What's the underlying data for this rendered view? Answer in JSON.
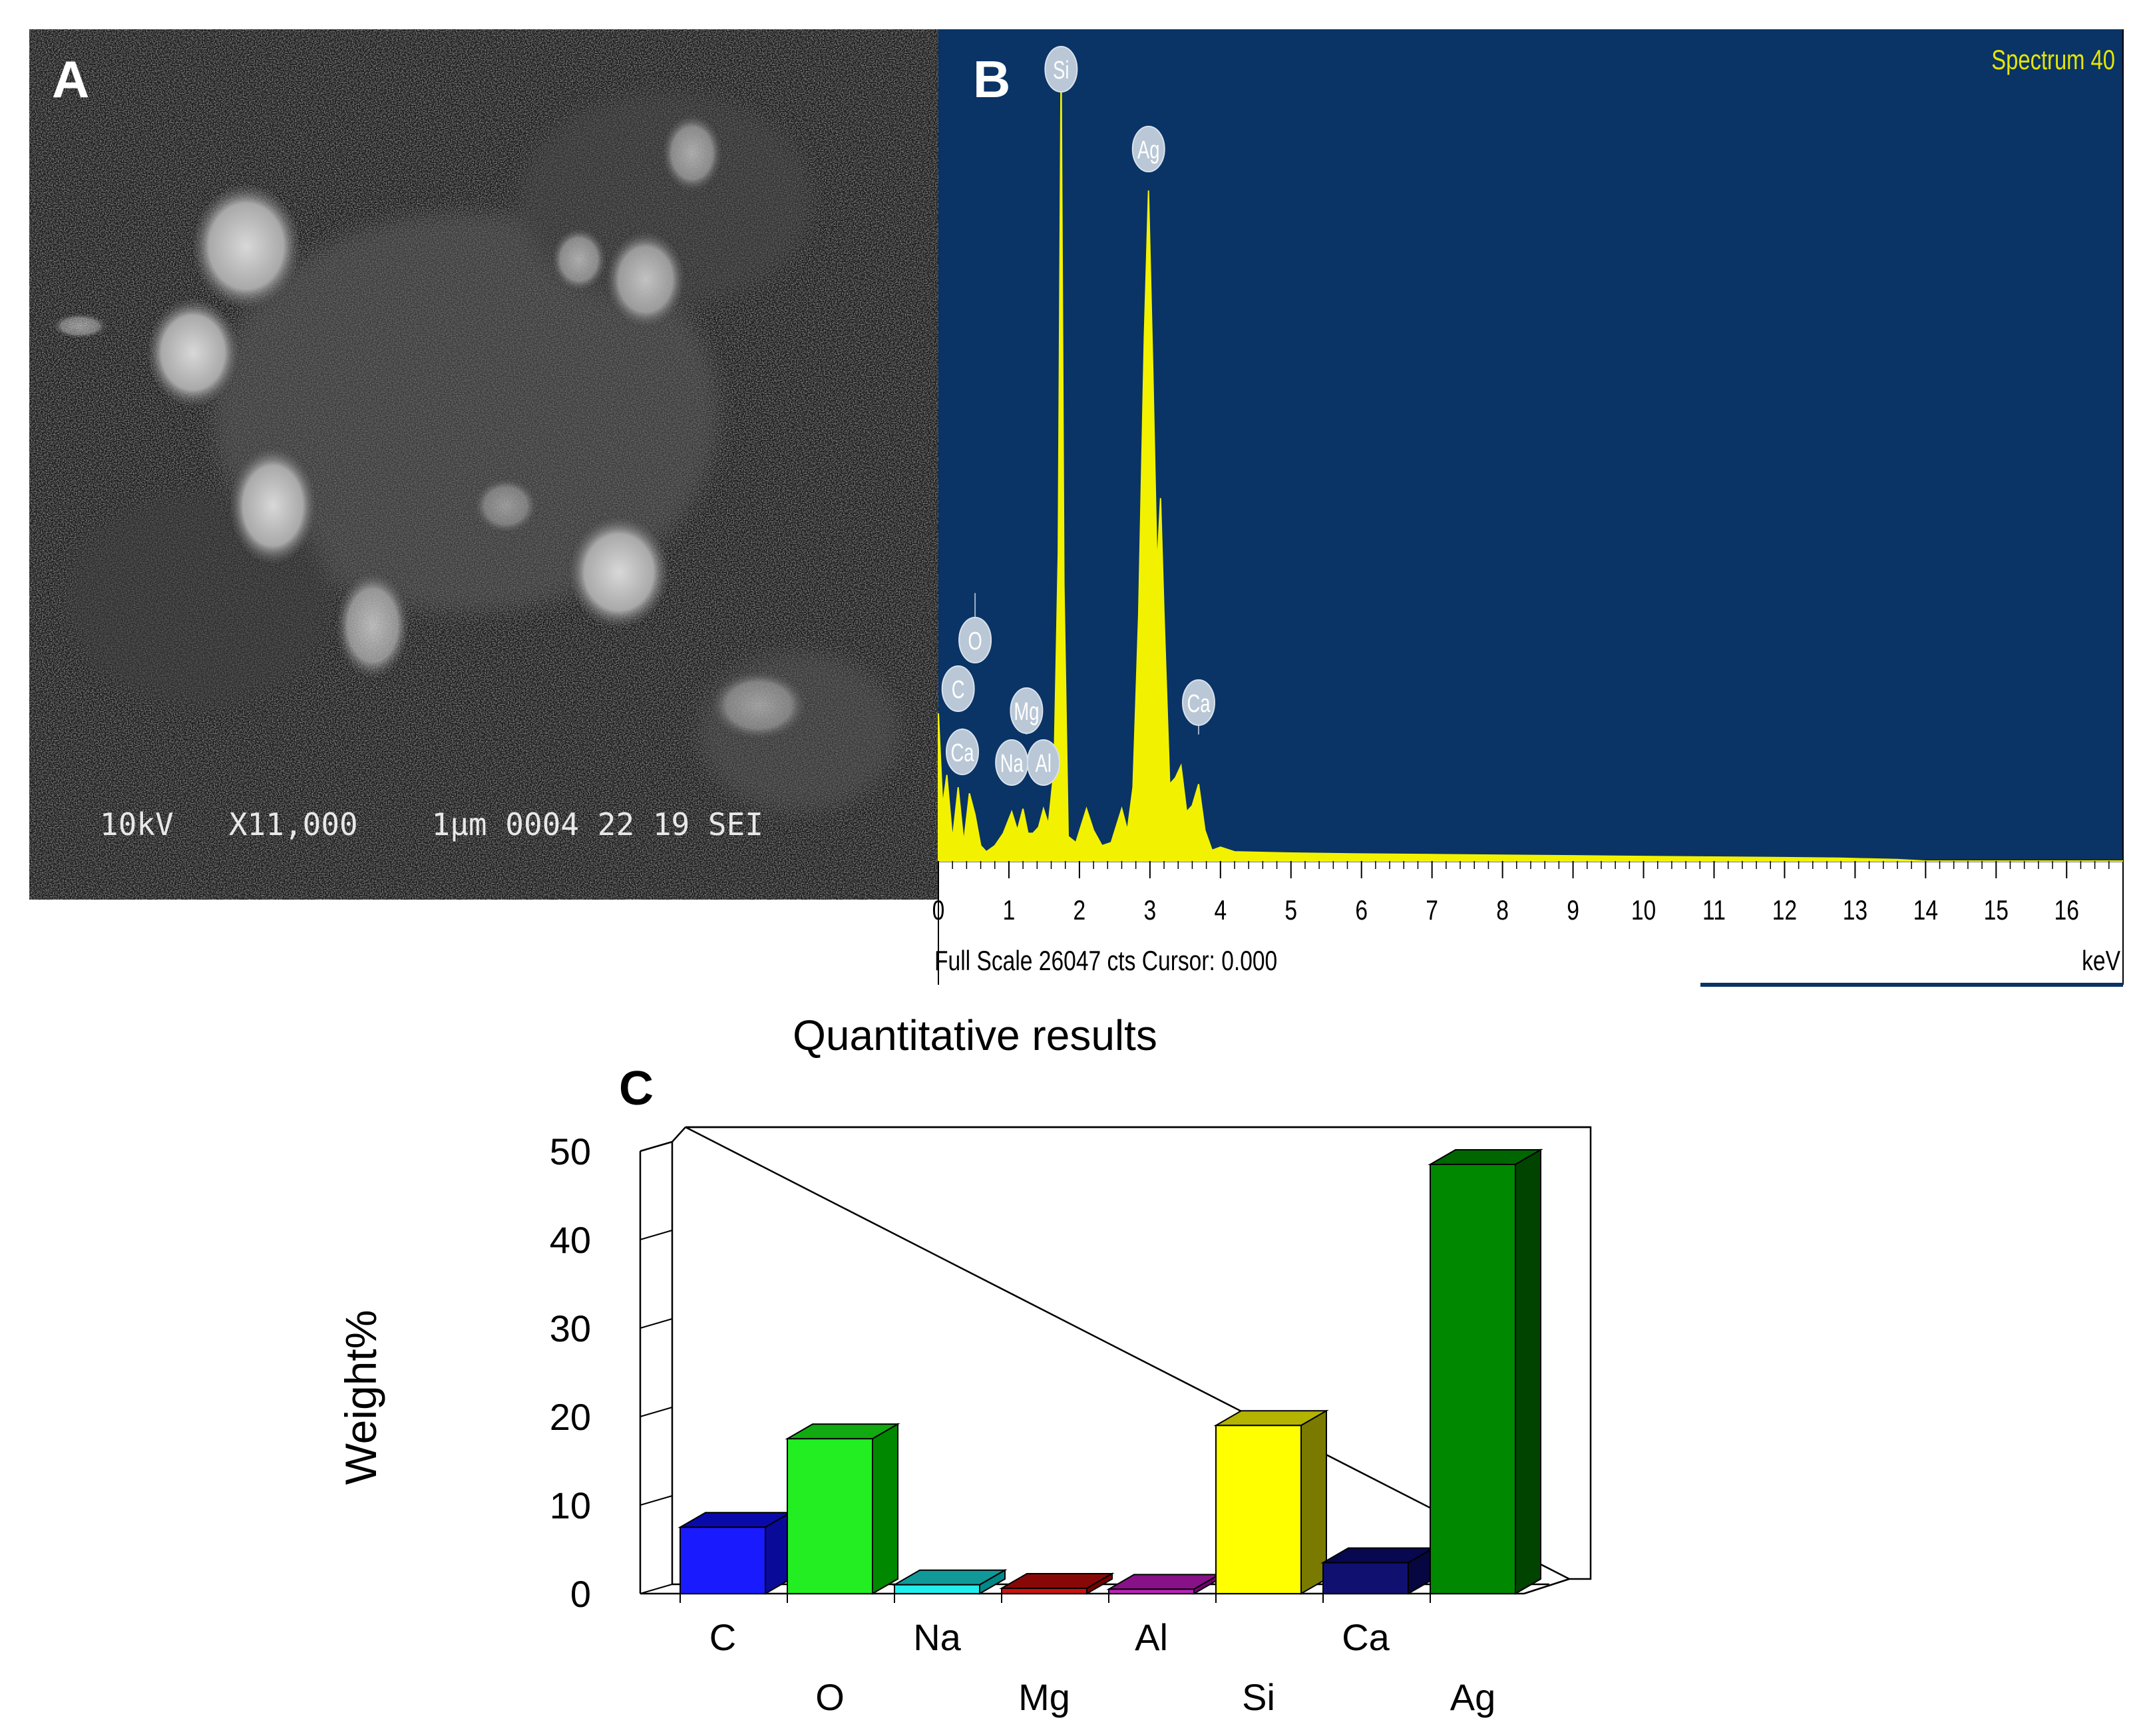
{
  "panels": {
    "a": {
      "label": "A",
      "info_bar": "10kV   X11,000    1µm 0004 22 19 SEI"
    },
    "b": {
      "label": "B",
      "spectrum_title": "Spectrum 40",
      "footer": "Full Scale 26047 cts Cursor: 0.000",
      "unit": "keV"
    },
    "c": {
      "label": "C"
    }
  },
  "colors": {
    "spectrum_background": "#0a3366",
    "spectrum_fill": "#f2f200",
    "spectrum_title": "#e6e600"
  },
  "chart_data": [
    {
      "type": "area",
      "panel": "B",
      "title": "Spectrum 40",
      "xlabel": "keV",
      "xlim": [
        0,
        16.8
      ],
      "x_ticks": [
        "0",
        "1",
        "2",
        "3",
        "4",
        "5",
        "6",
        "7",
        "8",
        "9",
        "10",
        "11",
        "12",
        "13",
        "14",
        "15",
        "16"
      ],
      "peaks": [
        {
          "label": "C",
          "x": 0.28,
          "y": 5200
        },
        {
          "label": "O",
          "x": 0.52,
          "y": 8800
        },
        {
          "label": "Ca",
          "x": 0.34,
          "y": 4400
        },
        {
          "label": "Na",
          "x": 1.04,
          "y": 3200
        },
        {
          "label": "Mg",
          "x": 1.25,
          "y": 4200
        },
        {
          "label": "Al",
          "x": 1.49,
          "y": 3200
        },
        {
          "label": "Si",
          "x": 1.74,
          "y": 26047
        },
        {
          "label": "Ag",
          "x": 2.98,
          "y": 22500
        },
        {
          "label": "Ca",
          "x": 3.69,
          "y": 4200
        }
      ],
      "spectrum": {
        "x": [
          0,
          0.06,
          0.12,
          0.2,
          0.28,
          0.36,
          0.44,
          0.52,
          0.6,
          0.68,
          0.8,
          0.92,
          1.04,
          1.12,
          1.2,
          1.27,
          1.34,
          1.42,
          1.49,
          1.56,
          1.64,
          1.7,
          1.74,
          1.78,
          1.84,
          1.95,
          2.1,
          2.2,
          2.32,
          2.45,
          2.6,
          2.68,
          2.76,
          2.84,
          2.92,
          2.98,
          3.04,
          3.1,
          3.15,
          3.2,
          3.28,
          3.36,
          3.44,
          3.52,
          3.6,
          3.69,
          3.78,
          3.88,
          4.0,
          4.2,
          5,
          6,
          7,
          8,
          9,
          10,
          11,
          12,
          12.8,
          13.2,
          13.6,
          14,
          16.8
        ],
        "y": [
          4800,
          1800,
          2800,
          700,
          2400,
          600,
          2200,
          1500,
          500,
          300,
          500,
          900,
          1600,
          1000,
          1700,
          900,
          900,
          1100,
          1700,
          1200,
          3000,
          10000,
          26047,
          9000,
          800,
          600,
          1700,
          1000,
          500,
          600,
          1700,
          1000,
          2400,
          8000,
          17000,
          21800,
          16000,
          9500,
          11800,
          8000,
          2500,
          2700,
          3100,
          1600,
          1800,
          2500,
          1000,
          350,
          450,
          300,
          260,
          230,
          210,
          190,
          170,
          150,
          130,
          110,
          90,
          70,
          50,
          0,
          0
        ]
      }
    },
    {
      "type": "bar",
      "panel": "C",
      "title": "Quantitative results",
      "ylabel": "Weight%",
      "ylim": [
        0,
        50
      ],
      "y_ticks": [
        "0",
        "10",
        "20",
        "30",
        "40",
        "50"
      ],
      "categories": [
        "C",
        "O",
        "Na",
        "Mg",
        "Al",
        "Si",
        "Ca",
        "Ag"
      ],
      "values": [
        7.5,
        17.5,
        1.0,
        0.6,
        0.5,
        19.0,
        3.5,
        48.5
      ],
      "bar_colors": [
        "#1a1aff",
        "#22ee22",
        "#22eeee",
        "#cc1111",
        "#bb22bb",
        "#ffff00",
        "#101070",
        "#008800"
      ],
      "side_colors": [
        "#0a0a99",
        "#008800",
        "#008888",
        "#770000",
        "#770077",
        "#7a7a00",
        "#060640",
        "#004400"
      ],
      "top_colors": [
        "#0a0aaa",
        "#11aa11",
        "#119999",
        "#880808",
        "#881188",
        "#b3b300",
        "#080850",
        "#006600"
      ]
    }
  ]
}
